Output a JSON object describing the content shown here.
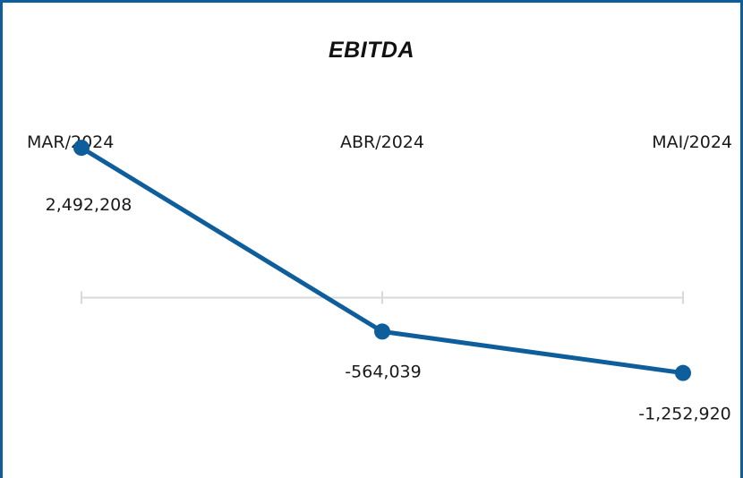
{
  "chart_data": {
    "type": "line",
    "title": "EBITDA",
    "categories": [
      "MAR/2024",
      "ABR/2024",
      "MAI/2024"
    ],
    "values": [
      2492208,
      -564039,
      -1252920
    ],
    "value_labels": [
      "2,492,208",
      "-564,039",
      "-1,252,920"
    ],
    "ylim": [
      -3000000,
      3700000
    ],
    "grid": false,
    "legend": "none",
    "colors": {
      "line": "#0f5e9c",
      "axis": "#d9d9d9",
      "border": "#0f5e9c"
    }
  }
}
